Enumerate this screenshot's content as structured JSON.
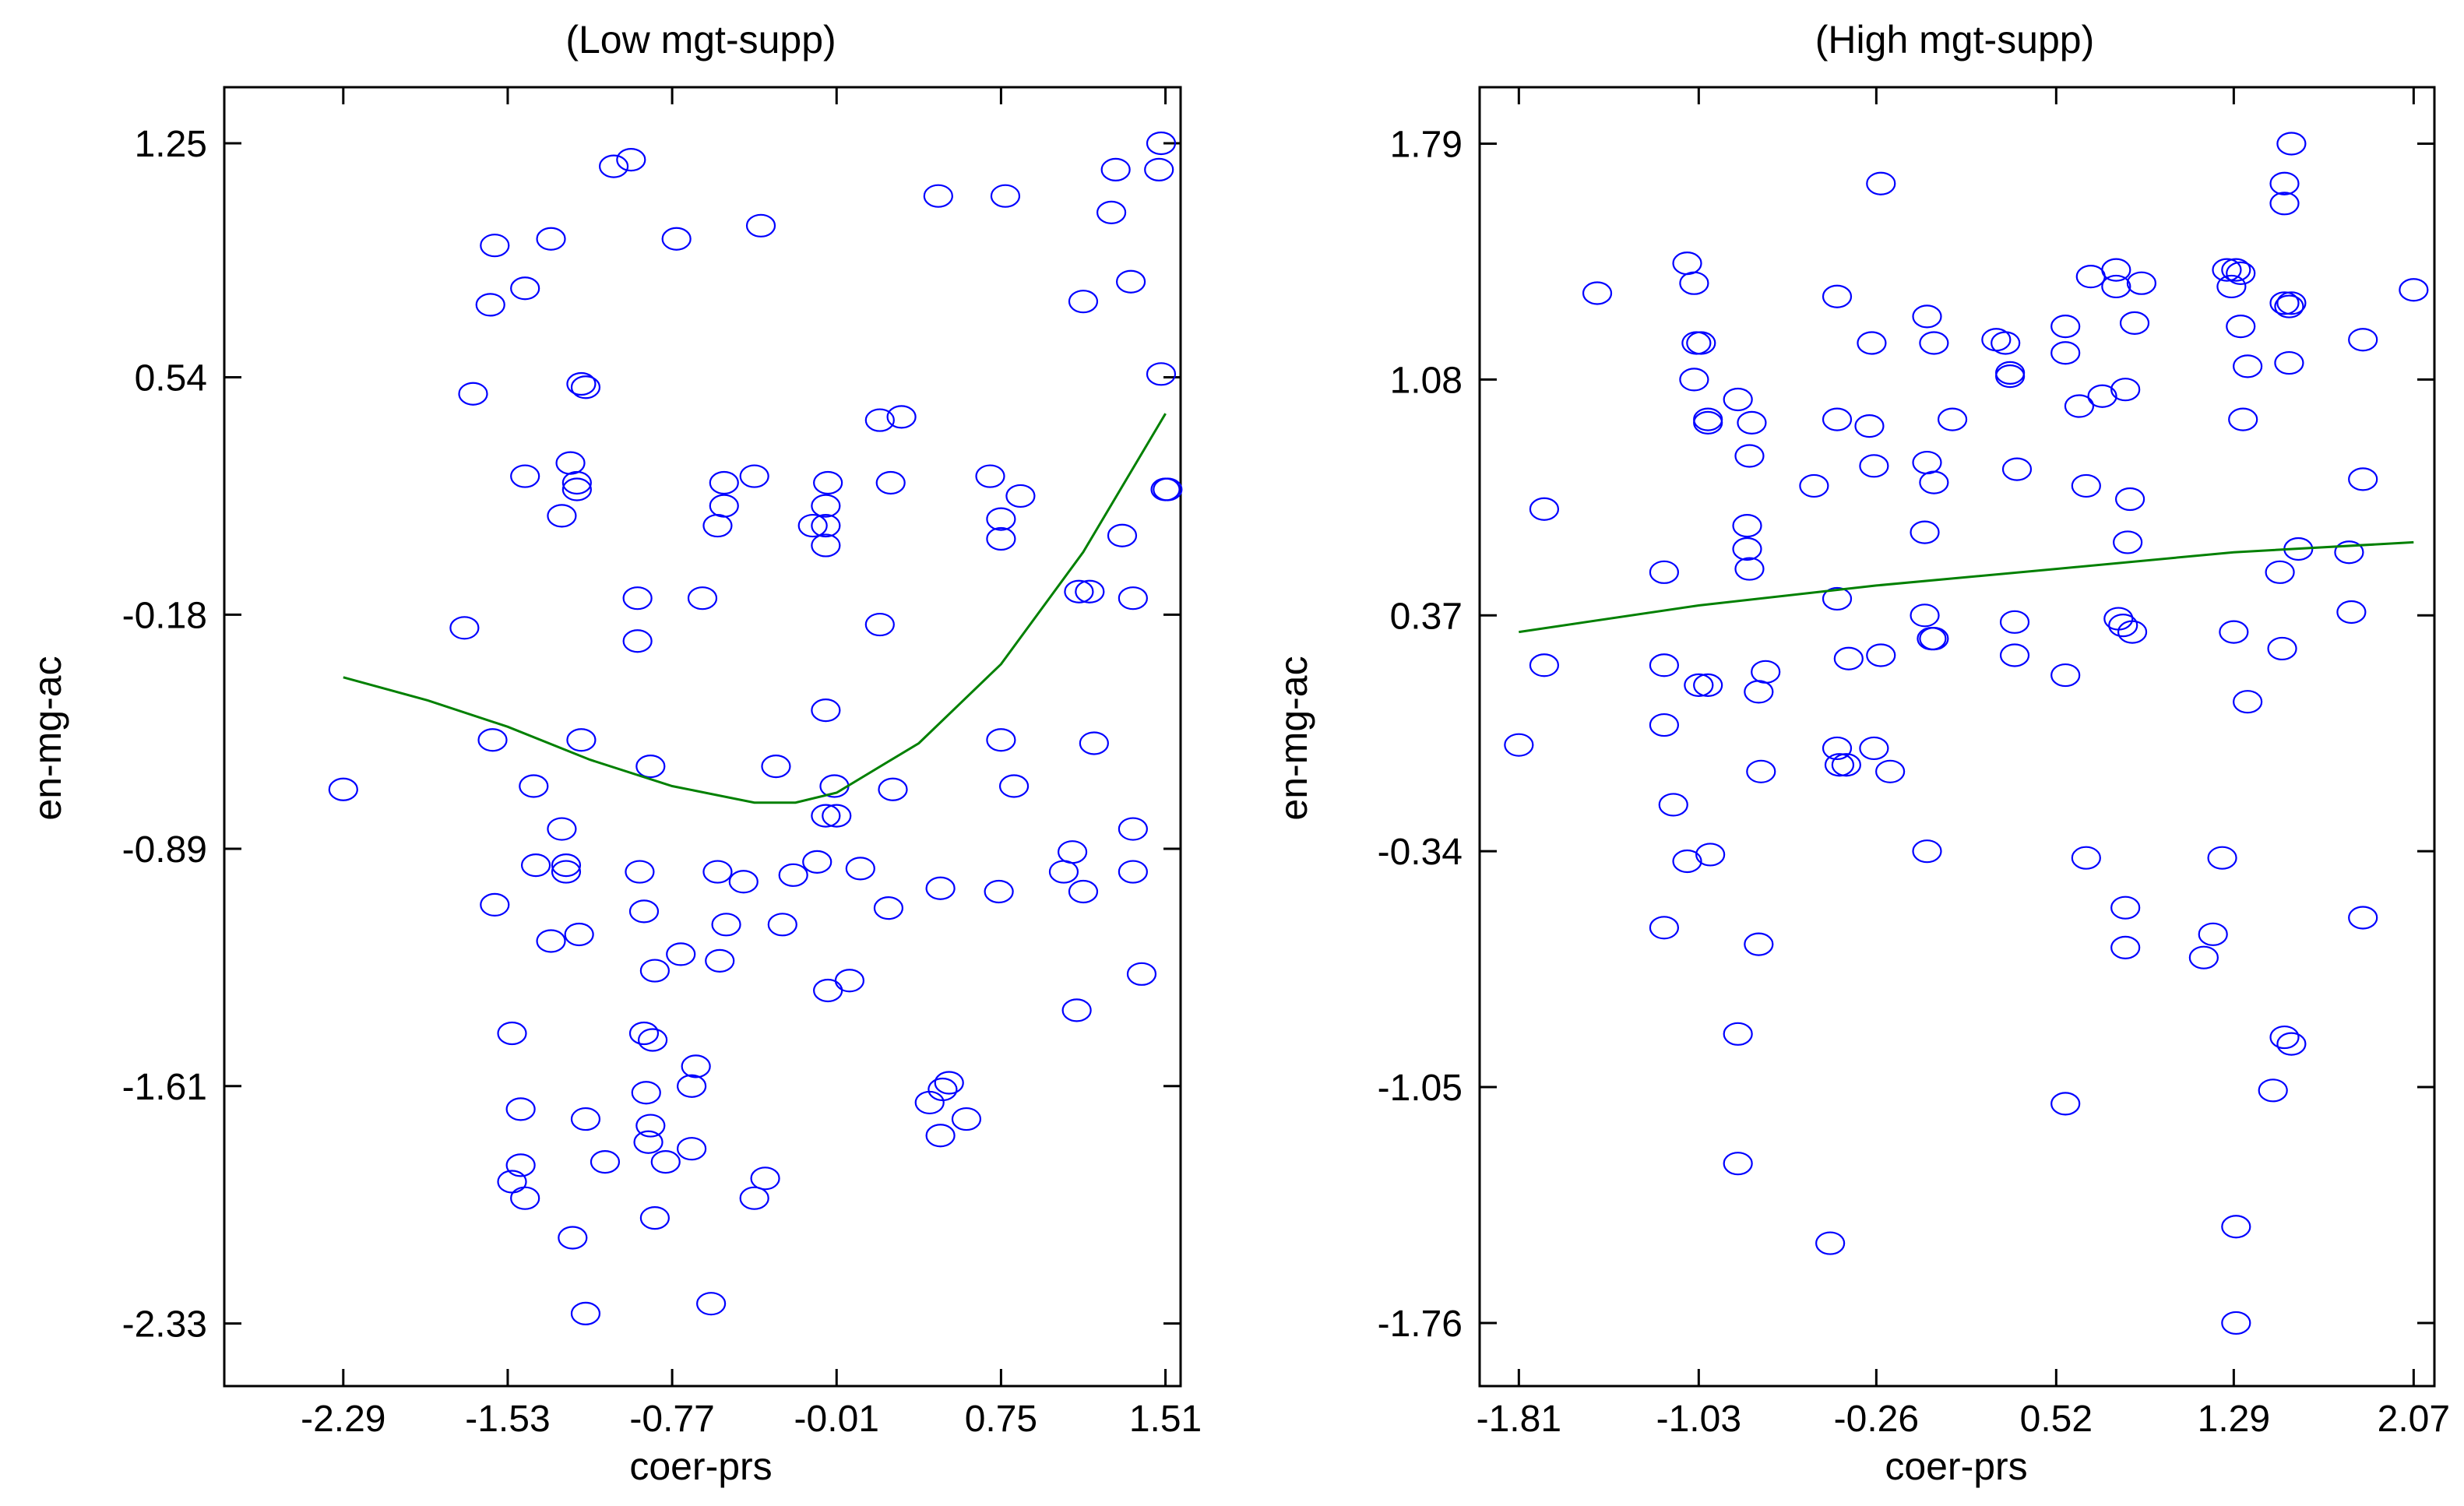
{
  "chart_data": [
    {
      "type": "scatter",
      "title": "(Low mgt-supp)",
      "xlabel": "coer-prs",
      "ylabel": "en-mg-ac",
      "xlim": [
        -2.84,
        1.58
      ],
      "ylim": [
        -2.52,
        1.42
      ],
      "xticks": [
        "-2.29",
        "-1.53",
        "-0.77",
        "-0.01",
        "0.75",
        "1.51"
      ],
      "yticks": [
        "1.25",
        "0.54",
        "-0.18",
        "-0.89",
        "-1.61",
        "-2.33"
      ],
      "grid": false,
      "marker_color": "#0000ff",
      "fit_color": "#008000",
      "points": [
        [
          -2.29,
          -0.71
        ],
        [
          -1.73,
          -0.22
        ],
        [
          -1.69,
          0.49
        ],
        [
          -1.6,
          -0.56
        ],
        [
          -1.61,
          0.76
        ],
        [
          -1.59,
          0.94
        ],
        [
          -1.59,
          -1.06
        ],
        [
          -1.51,
          -1.45
        ],
        [
          -1.47,
          -1.68
        ],
        [
          -1.47,
          -1.85
        ],
        [
          -1.45,
          -1.95
        ],
        [
          -1.51,
          -1.9
        ],
        [
          -1.45,
          0.81
        ],
        [
          -1.45,
          0.24
        ],
        [
          -1.41,
          -0.7
        ],
        [
          -1.4,
          -0.94
        ],
        [
          -1.33,
          -1.17
        ],
        [
          -1.33,
          0.96
        ],
        [
          -1.28,
          0.12
        ],
        [
          -1.28,
          -0.83
        ],
        [
          -1.26,
          -0.94
        ],
        [
          -1.26,
          -0.96
        ],
        [
          -1.24,
          0.28
        ],
        [
          -1.23,
          -2.07
        ],
        [
          -1.21,
          0.2
        ],
        [
          -1.21,
          0.22
        ],
        [
          -1.2,
          -1.15
        ],
        [
          -1.19,
          -0.56
        ],
        [
          -1.19,
          0.52
        ],
        [
          -1.17,
          0.51
        ],
        [
          -1.17,
          -1.71
        ],
        [
          -1.17,
          -2.3
        ],
        [
          -1.08,
          -1.84
        ],
        [
          -1.04,
          1.18
        ],
        [
          -0.96,
          1.2
        ],
        [
          -0.93,
          -0.13
        ],
        [
          -0.93,
          -0.26
        ],
        [
          -0.92,
          -0.96
        ],
        [
          -0.9,
          -1.08
        ],
        [
          -0.9,
          -1.45
        ],
        [
          -0.89,
          -1.63
        ],
        [
          -0.88,
          -1.78
        ],
        [
          -0.87,
          -0.64
        ],
        [
          -0.87,
          -1.73
        ],
        [
          -0.86,
          -1.47
        ],
        [
          -0.85,
          -1.26
        ],
        [
          -0.85,
          -2.01
        ],
        [
          -0.8,
          -1.84
        ],
        [
          -0.75,
          0.96
        ],
        [
          -0.73,
          -1.21
        ],
        [
          -0.68,
          -1.61
        ],
        [
          -0.68,
          -1.8
        ],
        [
          -0.66,
          -1.55
        ],
        [
          -0.63,
          -0.13
        ],
        [
          -0.59,
          -2.27
        ],
        [
          -0.56,
          0.09
        ],
        [
          -0.56,
          -0.96
        ],
        [
          -0.55,
          -1.23
        ],
        [
          -0.53,
          0.22
        ],
        [
          -0.53,
          0.15
        ],
        [
          -0.52,
          -1.12
        ],
        [
          -0.44,
          -0.99
        ],
        [
          -0.39,
          -1.95
        ],
        [
          -0.39,
          0.24
        ],
        [
          -0.36,
          1.0
        ],
        [
          -0.34,
          -1.89
        ],
        [
          -0.29,
          -0.64
        ],
        [
          -0.26,
          -1.12
        ],
        [
          -0.21,
          -0.97
        ],
        [
          -0.12,
          0.09
        ],
        [
          -0.1,
          -0.93
        ],
        [
          -0.06,
          0.03
        ],
        [
          -0.06,
          0.09
        ],
        [
          -0.06,
          0.15
        ],
        [
          -0.06,
          -0.47
        ],
        [
          -0.05,
          0.22
        ],
        [
          -0.06,
          -0.79
        ],
        [
          -0.05,
          -1.32
        ],
        [
          -0.01,
          -0.79
        ],
        [
          -0.02,
          -0.7
        ],
        [
          0.05,
          -1.29
        ],
        [
          0.1,
          -0.95
        ],
        [
          0.19,
          -0.21
        ],
        [
          0.19,
          0.41
        ],
        [
          0.23,
          -1.07
        ],
        [
          0.24,
          0.22
        ],
        [
          0.25,
          -0.71
        ],
        [
          0.29,
          0.42
        ],
        [
          0.42,
          -1.66
        ],
        [
          0.46,
          1.09
        ],
        [
          0.47,
          -1.01
        ],
        [
          0.47,
          -1.76
        ],
        [
          0.48,
          -1.62
        ],
        [
          0.51,
          -1.6
        ],
        [
          0.59,
          -1.71
        ],
        [
          0.7,
          0.24
        ],
        [
          0.75,
          0.11
        ],
        [
          0.75,
          0.05
        ],
        [
          0.75,
          -0.56
        ],
        [
          0.74,
          -1.02
        ],
        [
          0.77,
          1.09
        ],
        [
          0.81,
          -0.7
        ],
        [
          0.84,
          0.18
        ],
        [
          1.04,
          -0.96
        ],
        [
          1.08,
          -0.9
        ],
        [
          1.1,
          -1.38
        ],
        [
          1.11,
          -0.11
        ],
        [
          1.13,
          -1.02
        ],
        [
          1.13,
          0.77
        ],
        [
          1.16,
          -0.11
        ],
        [
          1.18,
          -0.57
        ],
        [
          1.26,
          1.04
        ],
        [
          1.28,
          1.17
        ],
        [
          1.31,
          0.06
        ],
        [
          1.35,
          0.83
        ],
        [
          1.36,
          -0.13
        ],
        [
          1.36,
          -0.96
        ],
        [
          1.36,
          -0.83
        ],
        [
          1.4,
          -1.27
        ],
        [
          1.48,
          1.17
        ],
        [
          1.49,
          1.25
        ],
        [
          1.49,
          0.55
        ],
        [
          1.51,
          0.2
        ],
        [
          1.52,
          0.2
        ]
      ],
      "fit_line": {
        "x": [
          -2.29,
          -1.9,
          -1.53,
          -1.15,
          -0.77,
          -0.39,
          -0.2,
          -0.01,
          0.37,
          0.75,
          1.13,
          1.51
        ],
        "y": [
          -0.37,
          -0.44,
          -0.52,
          -0.62,
          -0.7,
          -0.75,
          -0.75,
          -0.72,
          -0.57,
          -0.33,
          0.01,
          0.43
        ]
      }
    },
    {
      "type": "scatter",
      "title": "(High mgt-supp)",
      "xlabel": "coer-prs",
      "ylabel": "en-mg-ac",
      "xlim": [
        -1.98,
        2.16
      ],
      "ylim": [
        -1.95,
        1.96
      ],
      "xticks": [
        "-1.81",
        "-1.03",
        "-0.26",
        "0.52",
        "1.29",
        "2.07"
      ],
      "yticks": [
        "1.79",
        "1.08",
        "0.37",
        "-0.34",
        "-1.05",
        "-1.76"
      ],
      "grid": false,
      "marker_color": "#0000ff",
      "fit_color": "#008000",
      "points": [
        [
          -1.81,
          -0.02
        ],
        [
          -1.7,
          0.22
        ],
        [
          -1.7,
          0.69
        ],
        [
          -1.47,
          1.34
        ],
        [
          -1.18,
          0.5
        ],
        [
          -1.18,
          0.22
        ],
        [
          -1.18,
          0.04
        ],
        [
          -1.18,
          -0.57
        ],
        [
          -1.14,
          -0.2
        ],
        [
          -1.08,
          1.43
        ],
        [
          -1.08,
          -0.37
        ],
        [
          -1.05,
          1.37
        ],
        [
          -1.05,
          1.08
        ],
        [
          -1.04,
          1.19
        ],
        [
          -1.03,
          0.16
        ],
        [
          -1.02,
          1.19
        ],
        [
          -0.99,
          0.16
        ],
        [
          -0.99,
          0.96
        ],
        [
          -0.98,
          -0.35
        ],
        [
          -0.99,
          0.95
        ],
        [
          -0.86,
          -1.28
        ],
        [
          -0.86,
          1.02
        ],
        [
          -0.86,
          -0.89
        ],
        [
          -0.82,
          0.64
        ],
        [
          -0.82,
          0.57
        ],
        [
          -0.81,
          0.51
        ],
        [
          -0.81,
          0.85
        ],
        [
          -0.8,
          0.95
        ],
        [
          -0.77,
          0.14
        ],
        [
          -0.77,
          -0.62
        ],
        [
          -0.76,
          -0.1
        ],
        [
          -0.74,
          0.2
        ],
        [
          -0.53,
          0.76
        ],
        [
          -0.46,
          -1.52
        ],
        [
          -0.43,
          0.96
        ],
        [
          -0.43,
          1.33
        ],
        [
          -0.43,
          0.42
        ],
        [
          -0.43,
          -0.03
        ],
        [
          -0.42,
          -0.08
        ],
        [
          -0.39,
          -0.08
        ],
        [
          -0.38,
          0.24
        ],
        [
          -0.29,
          0.94
        ],
        [
          -0.28,
          1.19
        ],
        [
          -0.27,
          0.82
        ],
        [
          -0.24,
          1.67
        ],
        [
          -0.24,
          0.25
        ],
        [
          -0.27,
          -0.03
        ],
        [
          -0.2,
          -0.1
        ],
        [
          -0.05,
          0.62
        ],
        [
          -0.04,
          -0.34
        ],
        [
          -0.05,
          0.37
        ],
        [
          -0.04,
          1.27
        ],
        [
          -0.04,
          0.83
        ],
        [
          -0.01,
          1.19
        ],
        [
          -0.01,
          0.77
        ],
        [
          -0.02,
          0.3
        ],
        [
          -0.01,
          0.3
        ],
        [
          0.07,
          0.96
        ],
        [
          0.26,
          1.2
        ],
        [
          0.3,
          1.19
        ],
        [
          0.32,
          1.09
        ],
        [
          0.32,
          1.1
        ],
        [
          0.34,
          0.35
        ],
        [
          0.34,
          0.25
        ],
        [
          0.35,
          0.81
        ],
        [
          0.56,
          1.16
        ],
        [
          0.56,
          1.24
        ],
        [
          0.56,
          0.19
        ],
        [
          0.56,
          -1.1
        ],
        [
          0.62,
          1.0
        ],
        [
          0.65,
          0.76
        ],
        [
          0.65,
          -0.36
        ],
        [
          0.67,
          1.39
        ],
        [
          0.72,
          1.03
        ],
        [
          0.78,
          1.41
        ],
        [
          0.78,
          1.36
        ],
        [
          0.79,
          0.36
        ],
        [
          0.81,
          0.34
        ],
        [
          0.82,
          -0.51
        ],
        [
          0.82,
          -0.63
        ],
        [
          0.82,
          1.05
        ],
        [
          0.83,
          0.59
        ],
        [
          0.84,
          0.72
        ],
        [
          0.85,
          0.32
        ],
        [
          0.86,
          1.25
        ],
        [
          0.89,
          1.37
        ],
        [
          1.16,
          -0.66
        ],
        [
          1.2,
          -0.59
        ],
        [
          1.24,
          -0.36
        ],
        [
          1.26,
          1.41
        ],
        [
          1.28,
          1.36
        ],
        [
          1.29,
          0.32
        ],
        [
          1.3,
          -1.47
        ],
        [
          1.3,
          1.41
        ],
        [
          1.3,
          -1.76
        ],
        [
          1.32,
          1.4
        ],
        [
          1.32,
          1.24
        ],
        [
          1.33,
          0.96
        ],
        [
          1.35,
          1.12
        ],
        [
          1.35,
          0.11
        ],
        [
          1.46,
          -1.06
        ],
        [
          1.49,
          0.5
        ],
        [
          1.5,
          0.27
        ],
        [
          1.51,
          1.31
        ],
        [
          1.51,
          1.61
        ],
        [
          1.51,
          1.67
        ],
        [
          1.51,
          -0.9
        ],
        [
          1.53,
          1.13
        ],
        [
          1.53,
          1.3
        ],
        [
          1.54,
          1.31
        ],
        [
          1.54,
          1.79
        ],
        [
          1.54,
          -0.92
        ],
        [
          1.57,
          0.57
        ],
        [
          1.79,
          0.56
        ],
        [
          1.8,
          0.38
        ],
        [
          1.85,
          1.2
        ],
        [
          1.85,
          0.78
        ],
        [
          1.85,
          -0.54
        ],
        [
          2.07,
          1.35
        ]
      ],
      "fit_line": {
        "x": [
          -1.81,
          -1.03,
          -0.26,
          0.52,
          1.29,
          2.07
        ],
        "y": [
          0.32,
          0.4,
          0.46,
          0.51,
          0.56,
          0.59
        ]
      }
    }
  ]
}
